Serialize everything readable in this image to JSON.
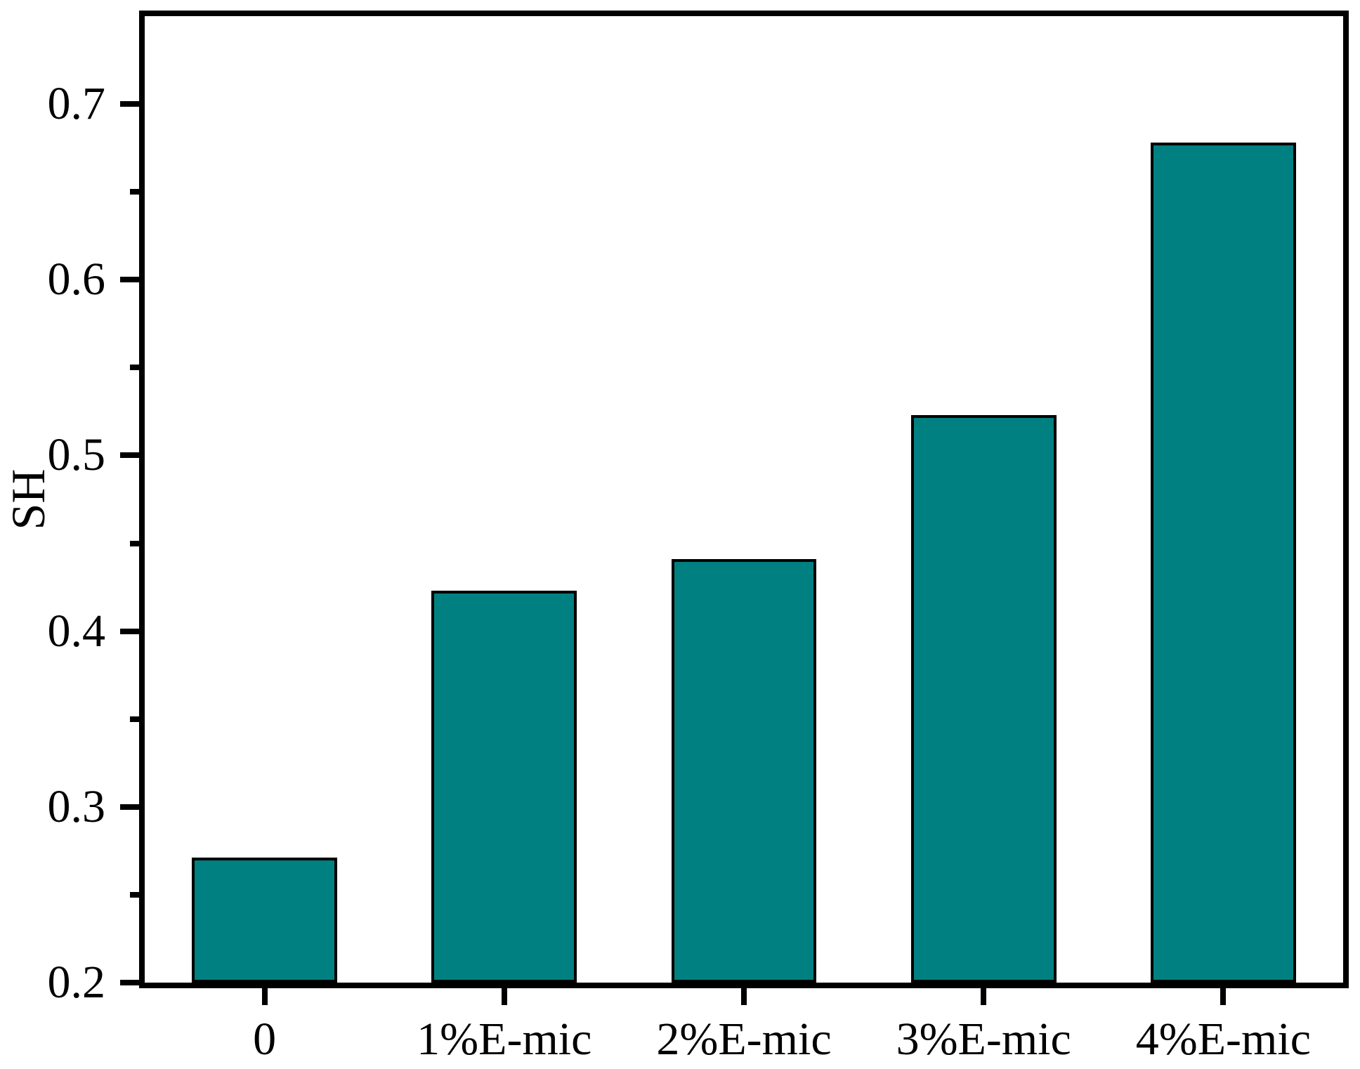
{
  "figure": {
    "background": "#ffffff"
  },
  "chart_data": {
    "type": "bar",
    "title": "",
    "xlabel": "",
    "ylabel": "SH",
    "categories": [
      "0",
      "1%E-mic",
      "2%E-mic",
      "3%E-mic",
      "4%E-mic"
    ],
    "values": [
      0.271,
      0.423,
      0.441,
      0.523,
      0.678
    ],
    "ylim": [
      0.2,
      0.75
    ],
    "yticks": {
      "values": [
        0.2,
        0.3,
        0.4,
        0.5,
        0.6,
        0.7
      ],
      "labels": [
        "0.2",
        "0.3",
        "0.4",
        "0.5",
        "0.6",
        "0.7"
      ],
      "minor_values": [
        0.25,
        0.35,
        0.45,
        0.55,
        0.65
      ]
    },
    "grid": false,
    "legend": null,
    "frame": true,
    "bar_color": "#008080",
    "bar_border_color": "#000000",
    "axis_color": "#000000"
  }
}
